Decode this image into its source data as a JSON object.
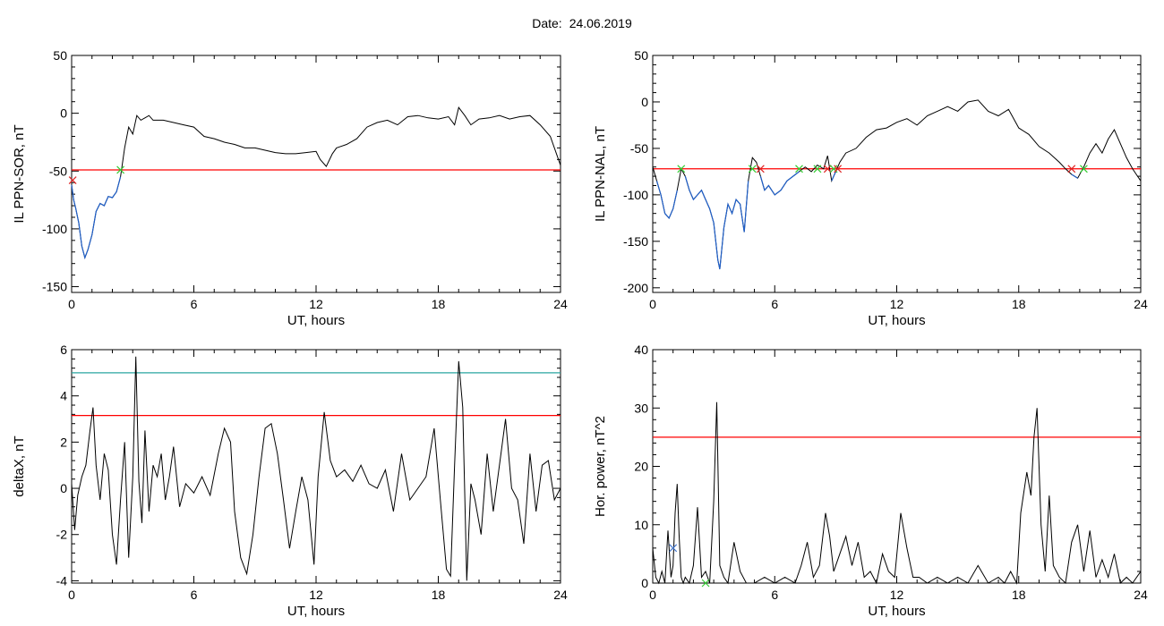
{
  "title": {
    "prefix": "Date:",
    "date": "24.06.2019"
  },
  "colors": {
    "trace": "#000000",
    "below": "#1f5fc8",
    "threshold_red": "#ff0000",
    "threshold_cyan": "#2aa6a0",
    "marker_green": "#33cc33",
    "marker_red": "#dd2222",
    "marker_blue": "#4477cc"
  },
  "chart_data": [
    {
      "type": "line",
      "ylabel": "IL PPN-SOR, nT",
      "xlabel": "UT, hours",
      "xlim": [
        0,
        24
      ],
      "ylim": [
        -155,
        50
      ],
      "xticks": [
        0,
        6,
        12,
        18,
        24
      ],
      "yticks": [
        50,
        0,
        -50,
        -100,
        -150
      ],
      "threshold": -49,
      "threshold_color": "red",
      "below_threshold_color": "blue",
      "series": [
        {
          "x": [
            0,
            0.1,
            0.2,
            0.35,
            0.5,
            0.65,
            0.8,
            1.0,
            1.2,
            1.4,
            1.6,
            1.8,
            2.0,
            2.2,
            2.4,
            2.6,
            2.8,
            3.0,
            3.2,
            3.4,
            3.6,
            3.8,
            4.0,
            4.5,
            5,
            5.5,
            6,
            6.5,
            7,
            7.5,
            8,
            8.5,
            9,
            9.5,
            10,
            10.5,
            11,
            11.5,
            12,
            12.2,
            12.5,
            12.8,
            13,
            13.5,
            14,
            14.5,
            15,
            15.5,
            16,
            16.5,
            17,
            17.5,
            18,
            18.5,
            18.8,
            19,
            19.3,
            19.6,
            20,
            20.5,
            21,
            21.5,
            22,
            22.5,
            23,
            23.5,
            24
          ],
          "y": [
            -62,
            -75,
            -82,
            -95,
            -115,
            -125,
            -118,
            -105,
            -85,
            -78,
            -80,
            -72,
            -73,
            -68,
            -55,
            -30,
            -12,
            -18,
            -2,
            -6,
            -4,
            -2,
            -6,
            -6,
            -8,
            -10,
            -12,
            -20,
            -22,
            -25,
            -27,
            -30,
            -30,
            -32,
            -34,
            -35,
            -35,
            -34,
            -33,
            -40,
            -46,
            -35,
            -30,
            -27,
            -22,
            -12,
            -8,
            -6,
            -10,
            -3,
            -2,
            -4,
            -5,
            -3,
            -10,
            5,
            -2,
            -10,
            -5,
            -4,
            -2,
            -5,
            -3,
            -2,
            -10,
            -20,
            -45
          ]
        }
      ],
      "markers": [
        {
          "x": 0.05,
          "y": -58,
          "color": "red"
        },
        {
          "x": 2.4,
          "y": -49,
          "color": "green"
        }
      ]
    },
    {
      "type": "line",
      "ylabel": "IL PPN-NAL, nT",
      "xlabel": "UT, hours",
      "xlim": [
        0,
        24
      ],
      "ylim": [
        -205,
        50
      ],
      "xticks": [
        0,
        6,
        12,
        18,
        24
      ],
      "yticks": [
        50,
        0,
        -50,
        -100,
        -150,
        -200
      ],
      "threshold": -72,
      "threshold_color": "red",
      "below_threshold_color": "blue",
      "series": [
        {
          "x": [
            0,
            0.2,
            0.4,
            0.6,
            0.8,
            1.0,
            1.2,
            1.4,
            1.6,
            1.8,
            2.0,
            2.2,
            2.4,
            2.6,
            2.8,
            3.0,
            3.2,
            3.3,
            3.5,
            3.7,
            3.9,
            4.1,
            4.3,
            4.5,
            4.7,
            4.9,
            5.1,
            5.3,
            5.5,
            5.7,
            6.0,
            6.3,
            6.6,
            6.9,
            7.2,
            7.5,
            7.8,
            8.1,
            8.4,
            8.6,
            8.8,
            9.0,
            9.2,
            9.5,
            10,
            10.5,
            11,
            11.5,
            12,
            12.5,
            13,
            13.5,
            14,
            14.5,
            15,
            15.5,
            16,
            16.5,
            17,
            17.5,
            18,
            18.5,
            19,
            19.5,
            20,
            20.3,
            20.6,
            20.9,
            21.2,
            21.5,
            21.8,
            22.1,
            22.4,
            22.7,
            23,
            23.3,
            23.6,
            24
          ],
          "y": [
            -70,
            -85,
            -100,
            -120,
            -125,
            -115,
            -95,
            -72,
            -80,
            -95,
            -105,
            -100,
            -95,
            -105,
            -115,
            -130,
            -170,
            -180,
            -135,
            -110,
            -120,
            -105,
            -110,
            -140,
            -85,
            -60,
            -65,
            -80,
            -95,
            -90,
            -100,
            -95,
            -85,
            -80,
            -75,
            -70,
            -75,
            -68,
            -72,
            -58,
            -85,
            -75,
            -65,
            -55,
            -50,
            -38,
            -30,
            -28,
            -22,
            -18,
            -25,
            -15,
            -10,
            -5,
            -10,
            0,
            2,
            -10,
            -15,
            -8,
            -28,
            -35,
            -48,
            -55,
            -65,
            -72,
            -78,
            -82,
            -70,
            -55,
            -45,
            -55,
            -40,
            -30,
            -45,
            -60,
            -72,
            -85
          ]
        }
      ],
      "markers": [
        {
          "x": 1.4,
          "y": -72,
          "color": "green"
        },
        {
          "x": 4.9,
          "y": -72,
          "color": "green"
        },
        {
          "x": 5.3,
          "y": -72,
          "color": "red"
        },
        {
          "x": 7.2,
          "y": -72,
          "color": "green"
        },
        {
          "x": 8.1,
          "y": -72,
          "color": "green"
        },
        {
          "x": 8.6,
          "y": -72,
          "color": "red"
        },
        {
          "x": 8.9,
          "y": -72,
          "color": "green"
        },
        {
          "x": 9.1,
          "y": -72,
          "color": "red"
        },
        {
          "x": 20.6,
          "y": -72,
          "color": "red"
        },
        {
          "x": 21.2,
          "y": -72,
          "color": "green"
        }
      ]
    },
    {
      "type": "line",
      "ylabel": "deltaX, nT",
      "xlabel": "UT, hours",
      "xlim": [
        0,
        24
      ],
      "ylim": [
        -4.1,
        6
      ],
      "xticks": [
        0,
        6,
        12,
        18,
        24
      ],
      "yticks": [
        6,
        4,
        2,
        0,
        -2,
        -4
      ],
      "threshold": 3.15,
      "threshold_color": "red",
      "threshold2": 5.0,
      "threshold2_color": "cyan",
      "series": [
        {
          "x": [
            0,
            0.15,
            0.3,
            0.5,
            0.7,
            0.9,
            1.05,
            1.2,
            1.4,
            1.6,
            1.8,
            2.0,
            2.2,
            2.4,
            2.6,
            2.8,
            3.0,
            3.15,
            3.3,
            3.45,
            3.6,
            3.8,
            4.0,
            4.2,
            4.4,
            4.6,
            4.8,
            5.0,
            5.3,
            5.6,
            6.0,
            6.4,
            6.8,
            7.2,
            7.5,
            7.8,
            8.0,
            8.3,
            8.6,
            8.9,
            9.2,
            9.5,
            9.8,
            10.1,
            10.4,
            10.7,
            11.0,
            11.3,
            11.6,
            11.9,
            12.1,
            12.4,
            12.7,
            13.0,
            13.4,
            13.8,
            14.2,
            14.6,
            15.0,
            15.4,
            15.8,
            16.2,
            16.6,
            17.0,
            17.4,
            17.8,
            18.1,
            18.4,
            18.6,
            18.8,
            19.0,
            19.2,
            19.4,
            19.6,
            19.8,
            20.1,
            20.4,
            20.7,
            21.0,
            21.3,
            21.6,
            21.9,
            22.2,
            22.5,
            22.8,
            23.1,
            23.4,
            23.7,
            24
          ],
          "y": [
            0.2,
            -1.8,
            -0.3,
            0.5,
            1.0,
            2.5,
            3.5,
            1.0,
            -0.5,
            1.5,
            0.8,
            -2.0,
            -3.3,
            -0.5,
            2.0,
            -3.0,
            0.5,
            5.7,
            0.3,
            -1.5,
            2.5,
            -1.0,
            1.0,
            0.5,
            1.5,
            -0.5,
            0.5,
            1.8,
            -0.8,
            0.2,
            -0.2,
            0.5,
            -0.3,
            1.5,
            2.6,
            2.0,
            -1.0,
            -3.0,
            -3.7,
            -2.0,
            0.5,
            2.6,
            2.8,
            1.5,
            -0.5,
            -2.6,
            -1.0,
            0.5,
            -0.5,
            -3.3,
            0.5,
            3.3,
            1.2,
            0.5,
            0.8,
            0.3,
            1.0,
            0.2,
            0.0,
            0.8,
            -1.0,
            1.5,
            -0.5,
            0.0,
            0.5,
            2.6,
            -0.5,
            -3.5,
            -3.8,
            1.0,
            5.5,
            3.5,
            -4.0,
            0.2,
            -0.5,
            -2.0,
            1.5,
            -1.0,
            1.0,
            3.0,
            0.0,
            -0.5,
            -2.4,
            1.5,
            -1.0,
            1.0,
            1.2,
            -0.5,
            0.0
          ]
        }
      ]
    },
    {
      "type": "line",
      "ylabel": "Hor. power, nT^2",
      "xlabel": "UT, hours",
      "xlim": [
        0,
        24
      ],
      "ylim": [
        0,
        40
      ],
      "xticks": [
        0,
        6,
        12,
        18,
        24
      ],
      "yticks": [
        0,
        10,
        20,
        30,
        40
      ],
      "threshold": 25,
      "threshold_color": "red",
      "series": [
        {
          "x": [
            0,
            0.15,
            0.3,
            0.45,
            0.6,
            0.75,
            0.9,
            1.0,
            1.1,
            1.2,
            1.3,
            1.4,
            1.5,
            1.6,
            1.8,
            2.0,
            2.2,
            2.4,
            2.6,
            2.8,
            3.0,
            3.15,
            3.3,
            3.5,
            3.7,
            4.0,
            4.3,
            4.6,
            5.0,
            5.5,
            6.0,
            6.5,
            7.0,
            7.3,
            7.6,
            7.9,
            8.2,
            8.5,
            8.7,
            8.9,
            9.2,
            9.5,
            9.8,
            10.1,
            10.4,
            10.7,
            11.0,
            11.3,
            11.6,
            11.9,
            12.2,
            12.5,
            12.8,
            13.1,
            13.5,
            14,
            14.5,
            15,
            15.5,
            16,
            16.5,
            17,
            17.3,
            17.6,
            17.9,
            18.1,
            18.4,
            18.6,
            18.75,
            18.9,
            19.1,
            19.3,
            19.5,
            19.7,
            20,
            20.3,
            20.6,
            20.9,
            21.2,
            21.5,
            21.8,
            22.1,
            22.4,
            22.7,
            23,
            23.3,
            23.6,
            24
          ],
          "y": [
            6,
            1,
            0,
            2,
            0,
            9,
            1,
            3,
            12,
            17,
            8,
            1,
            0,
            1,
            0,
            3,
            13,
            1,
            2,
            0,
            14,
            31,
            3,
            1,
            0,
            7,
            2,
            0,
            0,
            1,
            0,
            1,
            0,
            3,
            7,
            1,
            3,
            12,
            8,
            2,
            5,
            8,
            3,
            7,
            1,
            2,
            0,
            5,
            2,
            1,
            12,
            6,
            1,
            1,
            0,
            1,
            0,
            1,
            0,
            3,
            0,
            1,
            0,
            2,
            0,
            12,
            19,
            15,
            25,
            30,
            10,
            2,
            15,
            3,
            1,
            0,
            7,
            10,
            2,
            9,
            1,
            4,
            1,
            5,
            0,
            1,
            0,
            2
          ]
        }
      ],
      "markers": [
        {
          "x": 1.0,
          "y": 6,
          "color": "blue"
        },
        {
          "x": 2.6,
          "y": 0,
          "color": "green"
        }
      ]
    }
  ]
}
